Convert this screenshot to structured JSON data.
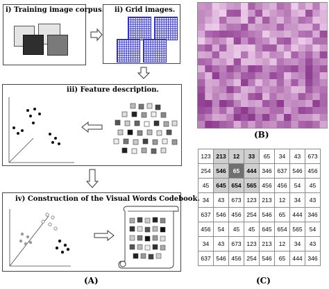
{
  "panel_a": {
    "step1_title": "i) Training image corpus.",
    "step2_title": "ii) Grid images.",
    "step3_title": "iii) Feature description.",
    "step4_title": "iv) Construction of the Visual Words Codebook.",
    "label": "(A)"
  },
  "panel_b": {
    "label": "(B)"
  },
  "panel_c": {
    "label": "(C)",
    "grid": [
      [
        "123",
        "213",
        "12",
        "33",
        "65",
        "34",
        "43",
        "673"
      ],
      [
        "254",
        "546",
        "65",
        "444",
        "346",
        "637",
        "546",
        "456"
      ],
      [
        "45",
        "645",
        "654",
        "565",
        "456",
        "456",
        "54",
        "45"
      ],
      [
        "34",
        "43",
        "673",
        "123",
        "213",
        "12",
        "34",
        "43"
      ],
      [
        "637",
        "546",
        "456",
        "254",
        "546",
        "65",
        "444",
        "346"
      ],
      [
        "456",
        "54",
        "45",
        "45",
        "645",
        "654",
        "565",
        "54"
      ],
      [
        "34",
        "43",
        "673",
        "123",
        "213",
        "12",
        "34",
        "43"
      ],
      [
        "637",
        "546",
        "456",
        "254",
        "546",
        "65",
        "444",
        "346"
      ]
    ],
    "highlight": [
      [
        0,
        1
      ],
      [
        0,
        2
      ],
      [
        0,
        3
      ],
      [
        1,
        1
      ],
      [
        1,
        3
      ],
      [
        2,
        1
      ],
      [
        2,
        2
      ],
      [
        2,
        3
      ]
    ],
    "center": [
      1,
      2
    ]
  },
  "colors": {
    "hist_light": "#f3d6ef",
    "hist_dark": "#8e3b90",
    "mini_grid_line": "#2a2ad0",
    "cell_highlight": "#cfcfcf",
    "cell_center": "#707070"
  }
}
